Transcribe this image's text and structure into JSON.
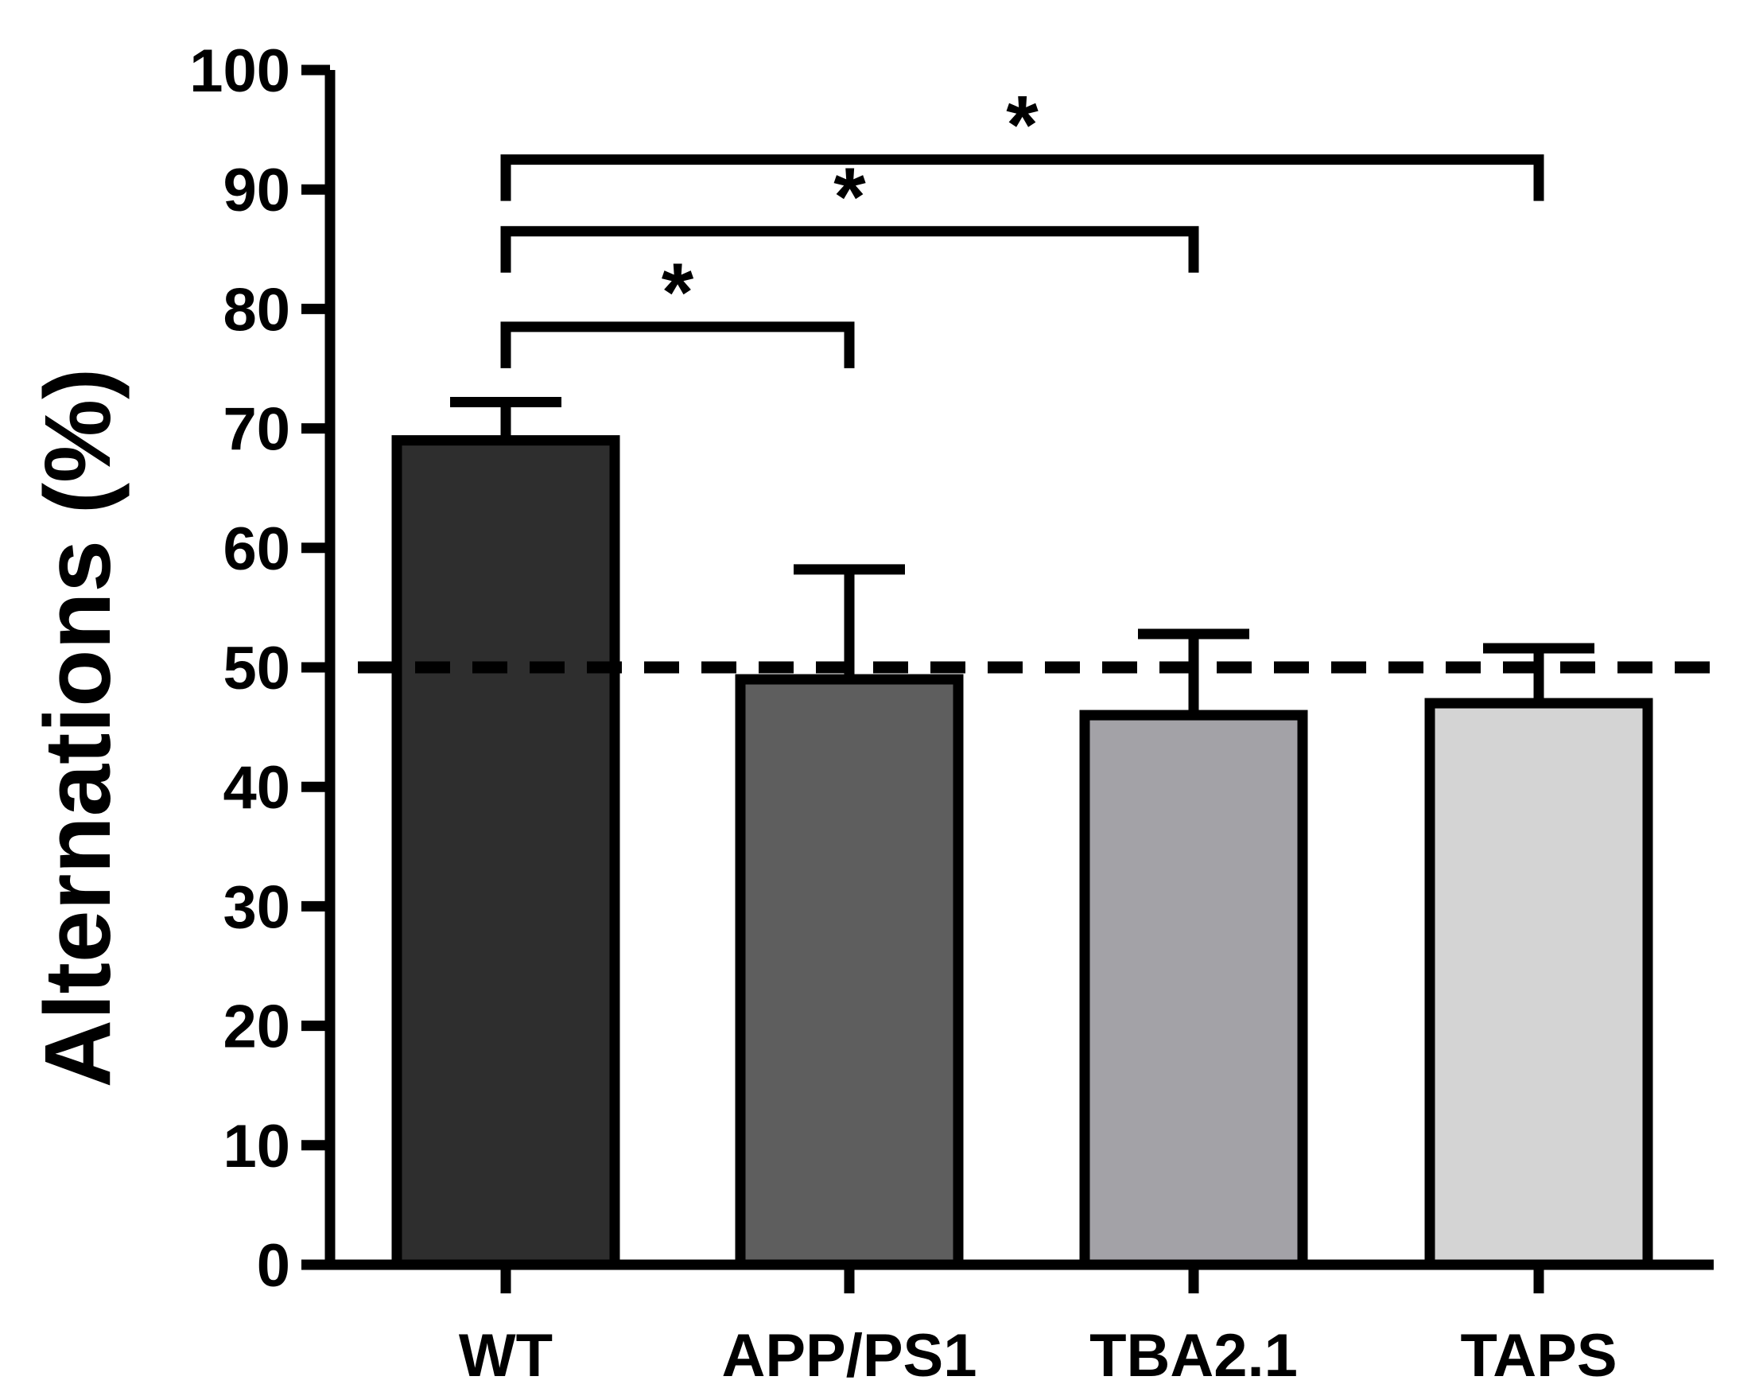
{
  "chart_data": {
    "type": "bar",
    "title": "",
    "xlabel": "",
    "ylabel": "Alternations (%)",
    "ylim": [
      0,
      100
    ],
    "yticks": [
      0,
      10,
      20,
      30,
      40,
      50,
      60,
      70,
      80,
      90,
      100
    ],
    "ytick_labels": [
      "0",
      "10",
      "20",
      "30",
      "40",
      "50",
      "60",
      "70",
      "80",
      "90",
      "100"
    ],
    "categories": [
      "WT",
      "APP/PS1",
      "TBA2.1",
      "TAPS"
    ],
    "values": [
      69,
      49,
      46,
      47
    ],
    "errors": [
      3.2,
      9.2,
      6.8,
      4.6
    ],
    "bar_colors": [
      "#2e2e2e",
      "#5e5e5e",
      "#a3a2a7",
      "#d4d4d4"
    ],
    "reference_line": {
      "value": 50,
      "style": "dashed"
    },
    "significance": [
      {
        "from": 0,
        "to": 1,
        "y": 78.5,
        "label": "*"
      },
      {
        "from": 0,
        "to": 2,
        "y": 86.5,
        "label": "*"
      },
      {
        "from": 0,
        "to": 3,
        "y": 92.5,
        "label": "*"
      }
    ],
    "grid": false,
    "legend": "none"
  }
}
